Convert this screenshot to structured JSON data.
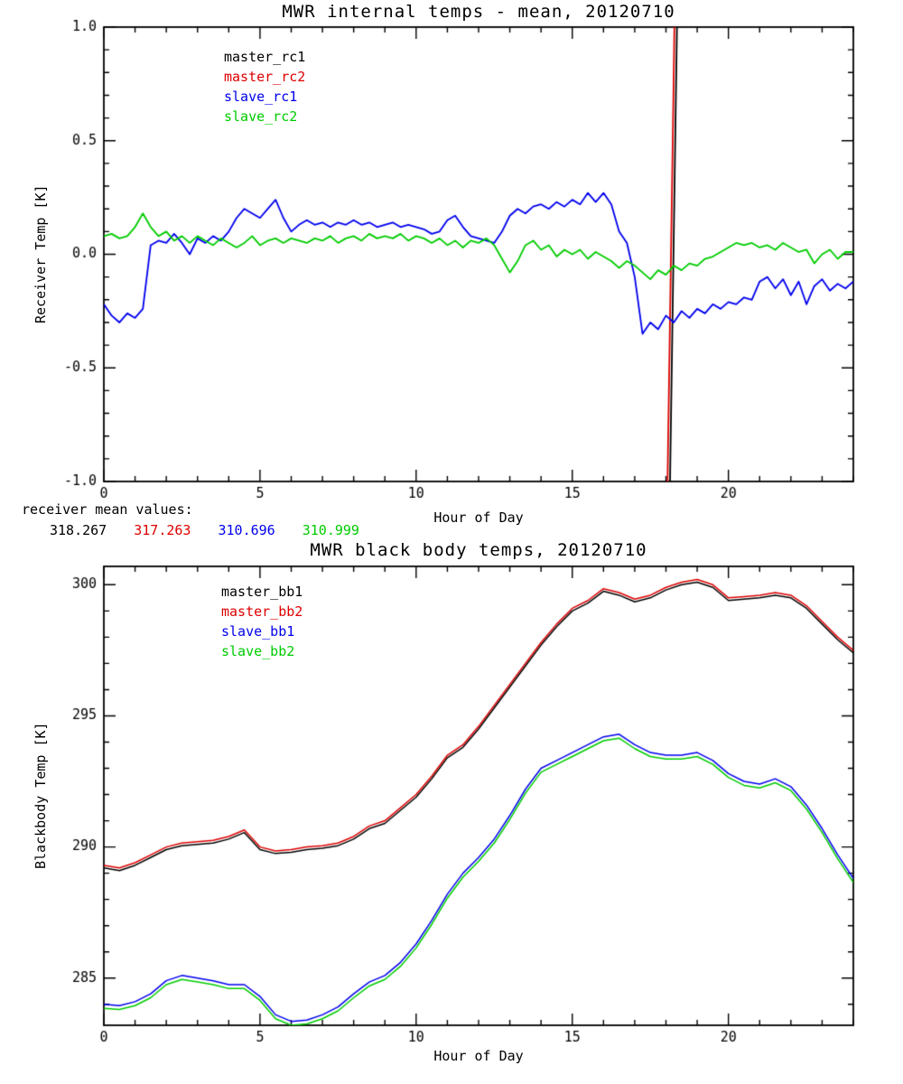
{
  "figure": {
    "background": "#ffffff",
    "receiver_means": {
      "label": "receiver mean values:",
      "values": [
        {
          "text": "318.267",
          "color": "#000000"
        },
        {
          "text": "317.263",
          "color": "#dd0000"
        },
        {
          "text": "310.696",
          "color": "#0000ee"
        },
        {
          "text": "310.999",
          "color": "#00cc00"
        }
      ]
    }
  },
  "chart_data": [
    {
      "type": "line",
      "title": "MWR internal temps - mean, 20120710",
      "xlabel": "Hour of Day",
      "ylabel": "Receiver Temp [K]",
      "xlim": [
        0,
        24
      ],
      "ylim": [
        -1.0,
        1.0
      ],
      "xticks": {
        "major": [
          0,
          5,
          10,
          15,
          20
        ],
        "labels": [
          "0",
          "5",
          "10",
          "15",
          "20"
        ],
        "minor_step": 1
      },
      "yticks": {
        "major": [
          -1.0,
          -0.5,
          0.0,
          0.5,
          1.0
        ],
        "labels": [
          "-1.0",
          "-0.5",
          "0.0",
          "0.5",
          "1.0"
        ],
        "minor_step": 0.1
      },
      "grid": false,
      "legend": {
        "position": "upper-left-inside"
      },
      "x_start": 0,
      "x_step": 0.25,
      "line_width": 1.8,
      "series": [
        {
          "name": "master_rc1",
          "color": "#000000",
          "points": [
            [
              0,
              -1.6
            ],
            [
              18.03,
              -1.6
            ],
            [
              18.13,
              -1.0
            ],
            [
              18.23,
              -0.1
            ],
            [
              18.33,
              0.8
            ],
            [
              18.42,
              1.6
            ],
            [
              24,
              1.6
            ]
          ]
        },
        {
          "name": "master_rc2",
          "color": "#dd0000",
          "points": [
            [
              0,
              -1.6
            ],
            [
              17.95,
              -1.6
            ],
            [
              18.05,
              -1.0
            ],
            [
              18.15,
              -0.1
            ],
            [
              18.25,
              0.8
            ],
            [
              18.33,
              1.6
            ],
            [
              24,
              1.6
            ]
          ]
        },
        {
          "name": "slave_rc1",
          "color": "#0000ee",
          "y": [
            -0.22,
            -0.27,
            -0.3,
            -0.26,
            -0.28,
            -0.24,
            0.04,
            0.06,
            0.05,
            0.09,
            0.05,
            0.0,
            0.07,
            0.05,
            0.08,
            0.06,
            0.1,
            0.16,
            0.2,
            0.18,
            0.16,
            0.2,
            0.24,
            0.16,
            0.1,
            0.13,
            0.15,
            0.13,
            0.14,
            0.12,
            0.14,
            0.13,
            0.15,
            0.13,
            0.14,
            0.12,
            0.13,
            0.14,
            0.12,
            0.13,
            0.12,
            0.11,
            0.09,
            0.1,
            0.15,
            0.17,
            0.12,
            0.08,
            0.07,
            0.06,
            0.05,
            0.1,
            0.17,
            0.2,
            0.18,
            0.21,
            0.22,
            0.2,
            0.23,
            0.21,
            0.24,
            0.22,
            0.27,
            0.23,
            0.27,
            0.22,
            0.1,
            0.05,
            -0.1,
            -0.35,
            -0.3,
            -0.33,
            -0.27,
            -0.3,
            -0.25,
            -0.28,
            -0.24,
            -0.26,
            -0.22,
            -0.24,
            -0.21,
            -0.22,
            -0.19,
            -0.2,
            -0.12,
            -0.1,
            -0.15,
            -0.11,
            -0.18,
            -0.12,
            -0.22,
            -0.14,
            -0.11,
            -0.16,
            -0.13,
            -0.15,
            -0.12
          ]
        },
        {
          "name": "slave_rc2",
          "color": "#00cc00",
          "y": [
            0.08,
            0.09,
            0.07,
            0.08,
            0.12,
            0.18,
            0.12,
            0.08,
            0.1,
            0.06,
            0.08,
            0.05,
            0.08,
            0.06,
            0.04,
            0.07,
            0.05,
            0.03,
            0.05,
            0.08,
            0.04,
            0.06,
            0.07,
            0.05,
            0.07,
            0.06,
            0.05,
            0.07,
            0.06,
            0.08,
            0.05,
            0.07,
            0.08,
            0.06,
            0.09,
            0.07,
            0.08,
            0.07,
            0.09,
            0.06,
            0.08,
            0.07,
            0.05,
            0.07,
            0.04,
            0.06,
            0.03,
            0.06,
            0.05,
            0.07,
            0.04,
            -0.02,
            -0.08,
            -0.03,
            0.04,
            0.06,
            0.02,
            0.04,
            -0.01,
            0.02,
            0.0,
            0.02,
            -0.02,
            0.01,
            -0.01,
            -0.03,
            -0.06,
            -0.03,
            -0.05,
            -0.08,
            -0.11,
            -0.07,
            -0.09,
            -0.05,
            -0.07,
            -0.04,
            -0.05,
            -0.02,
            -0.01,
            0.01,
            0.03,
            0.05,
            0.04,
            0.05,
            0.03,
            0.04,
            0.02,
            0.05,
            0.03,
            0.01,
            0.02,
            -0.04,
            0.0,
            0.02,
            -0.02,
            0.01,
            0.01
          ]
        }
      ]
    },
    {
      "type": "line",
      "title": "MWR black body temps, 20120710",
      "xlabel": "Hour of Day",
      "ylabel": "Blackbody Temp [K]",
      "xlim": [
        0,
        24
      ],
      "ylim": [
        283.2,
        300.7
      ],
      "xticks": {
        "major": [
          0,
          5,
          10,
          15,
          20
        ],
        "labels": [
          "0",
          "5",
          "10",
          "15",
          "20"
        ],
        "minor_step": 1
      },
      "yticks": {
        "major": [
          285,
          290,
          295,
          300
        ],
        "labels": [
          "285",
          "290",
          "295",
          "300"
        ],
        "minor_step": 1
      },
      "grid": false,
      "legend": {
        "position": "upper-left-inside"
      },
      "x_start": 0,
      "x_step": 0.5,
      "line_width": 1.5,
      "series": [
        {
          "name": "master_bb1",
          "color": "#000000",
          "y": [
            289.2,
            289.1,
            289.3,
            289.6,
            289.9,
            290.05,
            290.1,
            290.15,
            290.3,
            290.55,
            289.9,
            289.75,
            289.8,
            289.9,
            289.95,
            290.05,
            290.3,
            290.7,
            290.9,
            291.4,
            291.9,
            292.6,
            293.4,
            293.8,
            294.5,
            295.3,
            296.1,
            296.9,
            297.7,
            298.4,
            299.0,
            299.3,
            299.75,
            299.6,
            299.35,
            299.5,
            299.8,
            300.0,
            300.1,
            299.9,
            299.4,
            299.45,
            299.5,
            299.6,
            299.5,
            299.1,
            298.5,
            297.9,
            297.4
          ]
        },
        {
          "name": "master_bb2",
          "color": "#dd0000",
          "y": [
            289.3,
            289.2,
            289.4,
            289.7,
            290.0,
            290.15,
            290.2,
            290.25,
            290.4,
            290.65,
            290.0,
            289.85,
            289.9,
            290.0,
            290.05,
            290.15,
            290.4,
            290.8,
            291.0,
            291.5,
            292.0,
            292.7,
            293.5,
            293.9,
            294.6,
            295.4,
            296.2,
            297.0,
            297.8,
            298.5,
            299.1,
            299.4,
            299.85,
            299.7,
            299.45,
            299.6,
            299.9,
            300.1,
            300.2,
            300.0,
            299.5,
            299.55,
            299.6,
            299.7,
            299.6,
            299.2,
            298.6,
            298.0,
            297.5
          ]
        },
        {
          "name": "slave_bb1",
          "color": "#0000ee",
          "y": [
            284.0,
            283.95,
            284.1,
            284.4,
            284.9,
            285.1,
            285.0,
            284.9,
            284.75,
            284.75,
            284.3,
            283.6,
            283.35,
            283.4,
            283.6,
            283.9,
            284.4,
            284.85,
            285.1,
            285.6,
            286.3,
            287.2,
            288.2,
            289.0,
            289.6,
            290.3,
            291.2,
            292.2,
            293.0,
            293.3,
            293.6,
            293.9,
            294.2,
            294.3,
            293.9,
            293.6,
            293.5,
            293.5,
            293.6,
            293.3,
            292.8,
            292.5,
            292.4,
            292.6,
            292.3,
            291.6,
            290.7,
            289.7,
            288.8
          ]
        },
        {
          "name": "slave_bb2",
          "color": "#00cc00",
          "y": [
            283.85,
            283.8,
            283.95,
            284.25,
            284.75,
            284.95,
            284.85,
            284.75,
            284.6,
            284.6,
            284.15,
            283.45,
            283.2,
            283.25,
            283.45,
            283.75,
            284.25,
            284.7,
            284.95,
            285.45,
            286.15,
            287.05,
            288.05,
            288.85,
            289.45,
            290.15,
            291.05,
            292.05,
            292.85,
            293.15,
            293.45,
            293.75,
            294.05,
            294.15,
            293.75,
            293.45,
            293.35,
            293.35,
            293.45,
            293.15,
            292.65,
            292.35,
            292.25,
            292.45,
            292.15,
            291.45,
            290.55,
            289.55,
            288.65
          ]
        }
      ]
    }
  ]
}
